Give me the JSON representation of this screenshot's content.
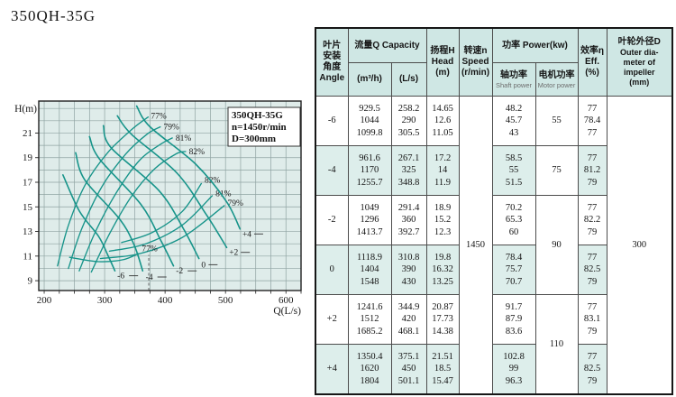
{
  "page": {
    "title": "350QH-35G"
  },
  "chart_data": {
    "type": "line",
    "title": "350QH-35G pump performance curves",
    "xlabel": "Q(L/s)",
    "ylabel": "H(m)",
    "xlim": [
      191,
      625
    ],
    "ylim": [
      8.2,
      23.6
    ],
    "x_ticks": [
      200,
      300,
      400,
      500,
      600
    ],
    "y_ticks": [
      21,
      19,
      17,
      15,
      13,
      11,
      9
    ],
    "x_grid": {
      "from": 200,
      "to": 625,
      "step": 25
    },
    "y_grid": {
      "from": 9,
      "to": 23,
      "step": 1
    },
    "legend_box": [
      "350QH-35G",
      "n=1450r/min",
      "D=300mm"
    ],
    "head_curves": [
      {
        "label": "-6",
        "points": [
          [
            231,
            17.6
          ],
          [
            258.2,
            14.65
          ],
          [
            290,
            12.6
          ],
          [
            305.5,
            11.05
          ],
          [
            317,
            9.8
          ]
        ],
        "label_at": [
          321,
          9.4
        ]
      },
      {
        "label": "-4",
        "points": [
          [
            252,
            19.4
          ],
          [
            267.1,
            17.2
          ],
          [
            325,
            14.0
          ],
          [
            348.8,
            11.9
          ],
          [
            363,
            9.8
          ]
        ],
        "label_at": [
          368,
          9.3
        ]
      },
      {
        "label": "-2",
        "points": [
          [
            275,
            20.7
          ],
          [
            291.4,
            18.9
          ],
          [
            360,
            15.2
          ],
          [
            392.7,
            12.3
          ],
          [
            414,
            10.2
          ]
        ],
        "label_at": [
          418,
          9.8
        ]
      },
      {
        "label": "0",
        "points": [
          [
            298,
            21.6
          ],
          [
            310.8,
            19.8
          ],
          [
            390,
            16.32
          ],
          [
            430,
            13.25
          ],
          [
            456,
            10.8
          ]
        ],
        "label_at": [
          460,
          10.3
        ]
      },
      {
        "label": "+2",
        "points": [
          [
            321,
            22.4
          ],
          [
            344.9,
            20.87
          ],
          [
            420,
            17.73
          ],
          [
            468.1,
            14.38
          ],
          [
            502,
            11.7
          ]
        ],
        "label_at": [
          506,
          11.3
        ]
      },
      {
        "label": "+4",
        "points": [
          [
            353,
            23.2
          ],
          [
            375.1,
            21.51
          ],
          [
            450,
            18.5
          ],
          [
            501.1,
            15.47
          ],
          [
            524,
            13.2
          ]
        ],
        "label_at": [
          528,
          12.8
        ]
      }
    ],
    "efficiency_upper": [
      {
        "label": "77%",
        "points": [
          [
            222,
            10.2
          ],
          [
            240,
            13.5
          ],
          [
            268,
            16.8
          ],
          [
            305,
            19.4
          ],
          [
            345,
            21.3
          ],
          [
            372,
            22.3
          ]
        ],
        "label_at": [
          375,
          22.4
        ]
      },
      {
        "label": "79%",
        "points": [
          [
            240,
            10.0
          ],
          [
            262,
            13.2
          ],
          [
            295,
            16.6
          ],
          [
            335,
            19.3
          ],
          [
            370,
            20.9
          ],
          [
            392,
            21.5
          ]
        ],
        "label_at": [
          396,
          21.5
        ]
      },
      {
        "label": "81%",
        "points": [
          [
            258,
            9.8
          ],
          [
            285,
            13.0
          ],
          [
            320,
            16.2
          ],
          [
            358,
            18.8
          ],
          [
            393,
            20.1
          ],
          [
            412,
            20.6
          ]
        ],
        "label_at": [
          416,
          20.6
        ]
      },
      {
        "label": "82%",
        "points": [
          [
            278,
            9.7
          ],
          [
            308,
            12.8
          ],
          [
            345,
            15.9
          ],
          [
            383,
            18.1
          ],
          [
            418,
            19.3
          ],
          [
            434,
            19.5
          ]
        ],
        "label_at": [
          438,
          19.5
        ]
      }
    ],
    "efficiency_lower": [
      {
        "label": "82%",
        "points": [
          [
            328,
            12.1
          ],
          [
            378,
            12.9
          ],
          [
            428,
            14.6
          ],
          [
            460,
            16.9
          ]
        ],
        "label_at": [
          464,
          17.2
        ]
      },
      {
        "label": "81%",
        "points": [
          [
            308,
            11.4
          ],
          [
            368,
            12.0
          ],
          [
            428,
            13.5
          ],
          [
            478,
            15.9
          ]
        ],
        "label_at": [
          482,
          16.1
        ]
      },
      {
        "label": "79%",
        "points": [
          [
            293,
            10.8
          ],
          [
            358,
            11.2
          ],
          [
            428,
            12.5
          ],
          [
            498,
            15.1
          ]
        ],
        "label_at": [
          502,
          15.3
        ]
      },
      {
        "label": "77%",
        "points": [
          [
            242,
            10.9
          ],
          [
            290,
            10.55
          ],
          [
            330,
            10.7
          ],
          [
            356,
            11.2
          ]
        ],
        "label_at": [
          360,
          11.6
        ]
      }
    ],
    "dashed_guide": {
      "q": 373,
      "h_from": 8.2,
      "h_to": 11.1
    },
    "colors": {
      "bg": "#dfecea",
      "grid": "#8fa3a2",
      "curve": "#17948a",
      "axis": "#222222",
      "text": "#1a1a1a"
    }
  },
  "table": {
    "header": {
      "angle": [
        "叶片",
        "安装",
        "角度",
        "Angle"
      ],
      "capacity_group": "流量Q Capacity",
      "capacity_units": [
        "(m³/h)",
        "(L/s)"
      ],
      "head": [
        "扬程H",
        "Head",
        "(m)"
      ],
      "speed": [
        "转速n",
        "Speed",
        "(r/min)"
      ],
      "power_group": "功率 Power(kw)",
      "shaft": [
        "轴功率",
        "Shaft power"
      ],
      "motor": [
        "电机功率",
        "Motor power"
      ],
      "eff": [
        "效率η",
        "Eff.",
        "(%)"
      ],
      "outer": [
        "叶轮外径D",
        "Outer dia-",
        "meter of",
        "impeller",
        "(mm)"
      ]
    },
    "speed_rpm": "1450",
    "outer_diameter_mm": "300",
    "rows": [
      {
        "angle": "-6",
        "shaded": false,
        "m3h": [
          "929.5",
          "1044",
          "1099.8"
        ],
        "ls": [
          "258.2",
          "290",
          "305.5"
        ],
        "head": [
          "14.65",
          "12.6",
          "11.05"
        ],
        "shaft": [
          "48.2",
          "45.7",
          "43"
        ],
        "motor": "55",
        "motor_span": 1,
        "eff": [
          "77",
          "78.4",
          "77"
        ]
      },
      {
        "angle": "-4",
        "shaded": true,
        "m3h": [
          "961.6",
          "1170",
          "1255.7"
        ],
        "ls": [
          "267.1",
          "325",
          "348.8"
        ],
        "head": [
          "17.2",
          "14",
          "11.9"
        ],
        "shaft": [
          "58.5",
          "55",
          "51.5"
        ],
        "motor": "75",
        "motor_span": 1,
        "eff": [
          "77",
          "81.2",
          "79"
        ]
      },
      {
        "angle": "-2",
        "shaded": false,
        "m3h": [
          "1049",
          "1296",
          "1413.7"
        ],
        "ls": [
          "291.4",
          "360",
          "392.7"
        ],
        "head": [
          "18.9",
          "15.2",
          "12.3"
        ],
        "shaft": [
          "70.2",
          "65.3",
          "60"
        ],
        "motor": "90",
        "motor_span": 2,
        "eff": [
          "77",
          "82.2",
          "79"
        ]
      },
      {
        "angle": "0",
        "shaded": true,
        "m3h": [
          "1118.9",
          "1404",
          "1548"
        ],
        "ls": [
          "310.8",
          "390",
          "430"
        ],
        "head": [
          "19.8",
          "16.32",
          "13.25"
        ],
        "shaft": [
          "78.4",
          "75.7",
          "70.7"
        ],
        "motor": null,
        "eff": [
          "77",
          "82.5",
          "79"
        ]
      },
      {
        "angle": "+2",
        "shaded": false,
        "m3h": [
          "1241.6",
          "1512",
          "1685.2"
        ],
        "ls": [
          "344.9",
          "420",
          "468.1"
        ],
        "head": [
          "20.87",
          "17.73",
          "14.38"
        ],
        "shaft": [
          "91.7",
          "87.9",
          "83.6"
        ],
        "motor": "110",
        "motor_span": 2,
        "eff": [
          "77",
          "83.1",
          "79"
        ]
      },
      {
        "angle": "+4",
        "shaded": true,
        "m3h": [
          "1350.4",
          "1620",
          "1804"
        ],
        "ls": [
          "375.1",
          "450",
          "501.1"
        ],
        "head": [
          "21.51",
          "18.5",
          "15.47"
        ],
        "shaft": [
          "102.8",
          "99",
          "96.3"
        ],
        "motor": null,
        "eff": [
          "77",
          "82.5",
          "79"
        ]
      }
    ]
  }
}
